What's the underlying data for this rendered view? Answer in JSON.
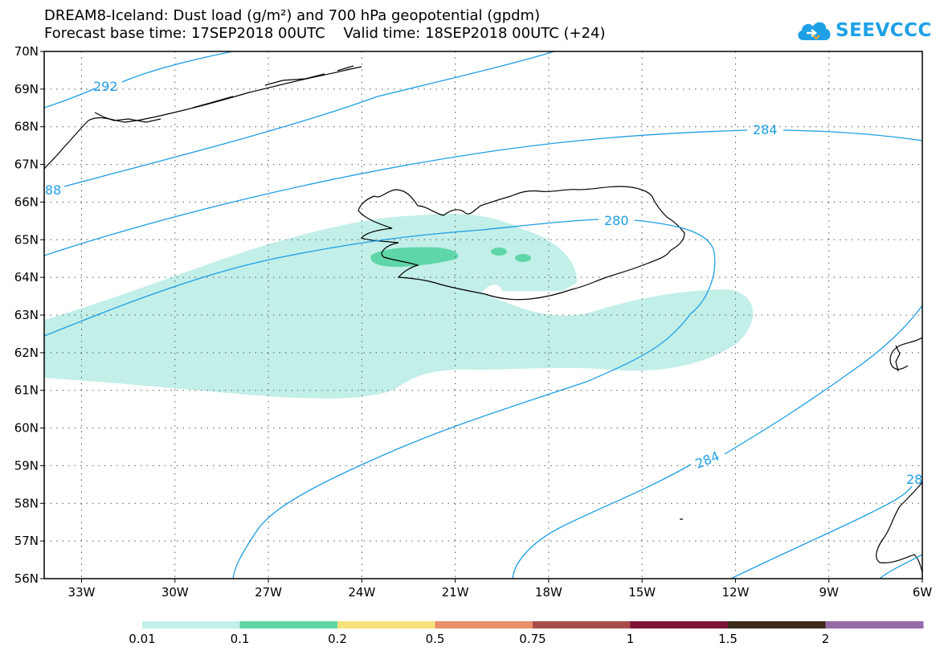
{
  "title": {
    "line1": "DREAM8-Iceland: Dust load (g/m²) and 700 hPa geopotential (gpdm)",
    "line2": "Forecast base time: 17SEP2018 00UTC    Valid time: 18SEP2018 00UTC (+24)"
  },
  "logo": {
    "text": "SEEVCCC",
    "icon": "cloud-icon",
    "color": "#1ea0e6"
  },
  "map": {
    "lat_labels": [
      "70N",
      "69N",
      "68N",
      "67N",
      "66N",
      "65N",
      "64N",
      "63N",
      "62N",
      "61N",
      "60N",
      "59N",
      "58N",
      "57N",
      "56N"
    ],
    "lon_labels": [
      "33W",
      "30W",
      "27W",
      "24W",
      "21W",
      "18W",
      "15W",
      "12W",
      "9W",
      "6W"
    ],
    "lat_range": [
      56,
      70
    ],
    "lon_range": [
      -34.2,
      -6
    ],
    "grid": "dotted",
    "contour_color": "#1e9ee6",
    "contour_labels": [
      "292",
      "88",
      "284",
      "280",
      "284",
      "28"
    ]
  },
  "colorbar": {
    "labels": [
      "0.01",
      "0.1",
      "0.2",
      "0.5",
      "0.75",
      "1",
      "1.5",
      "2"
    ],
    "colors": [
      "#c2efe8",
      "#5ed6a7",
      "#f7e27c",
      "#e88f6c",
      "#a84e4a",
      "#7c1336",
      "#3b2a1a",
      "#956aa8"
    ]
  }
}
